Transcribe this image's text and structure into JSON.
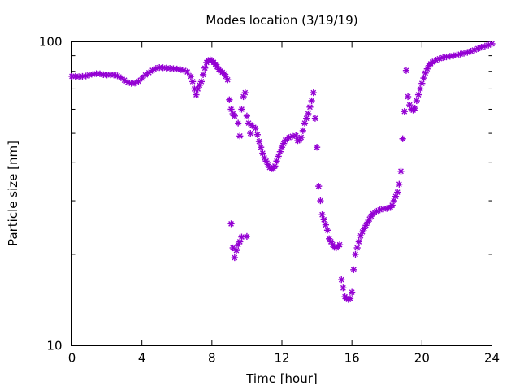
{
  "chart_data": {
    "type": "scatter",
    "title": "Modes location (3/19/19)",
    "xlabel": "Time [hour]",
    "ylabel": "Particle size [nm]",
    "xlim": [
      0,
      24
    ],
    "ylim": [
      10,
      100
    ],
    "yscale": "log",
    "grid": false,
    "marker_color": "#9400D3",
    "x_ticks": [
      "0",
      "4",
      "8",
      "12",
      "16",
      "20",
      "24"
    ],
    "y_ticks": [
      "10",
      "100"
    ],
    "series": [
      {
        "points": [
          [
            0.0,
            77
          ],
          [
            0.2,
            77
          ],
          [
            0.4,
            76.8
          ],
          [
            0.6,
            77
          ],
          [
            0.8,
            77.2
          ],
          [
            1.0,
            77.8
          ],
          [
            1.2,
            78.2
          ],
          [
            1.4,
            78.6
          ],
          [
            1.6,
            78.5
          ],
          [
            1.8,
            78
          ],
          [
            2.0,
            77.8
          ],
          [
            2.2,
            77.9
          ],
          [
            2.4,
            77.8
          ],
          [
            2.6,
            77.3
          ],
          [
            2.8,
            76.2
          ],
          [
            3.0,
            74.8
          ],
          [
            3.2,
            73.6
          ],
          [
            3.4,
            73
          ],
          [
            3.6,
            73.2
          ],
          [
            3.8,
            74.2
          ],
          [
            4.0,
            76
          ],
          [
            4.2,
            77.8
          ],
          [
            4.4,
            79.2
          ],
          [
            4.6,
            80.6
          ],
          [
            4.8,
            81.8
          ],
          [
            5.0,
            82.3
          ],
          [
            5.2,
            82.2
          ],
          [
            5.4,
            82
          ],
          [
            5.6,
            81.8
          ],
          [
            5.8,
            81.6
          ],
          [
            6.0,
            81.4
          ],
          [
            6.2,
            81
          ],
          [
            6.4,
            80.6
          ],
          [
            6.6,
            79.6
          ],
          [
            6.8,
            77
          ],
          [
            6.9,
            74
          ],
          [
            7.0,
            70
          ],
          [
            7.1,
            67
          ],
          [
            7.2,
            70
          ],
          [
            7.3,
            72
          ],
          [
            7.4,
            74
          ],
          [
            7.5,
            78
          ],
          [
            7.6,
            82
          ],
          [
            7.7,
            85.5
          ],
          [
            7.8,
            86.8
          ],
          [
            7.9,
            87.2
          ],
          [
            8.0,
            86.8
          ],
          [
            8.1,
            85.6
          ],
          [
            8.2,
            84.3
          ],
          [
            8.3,
            82.8
          ],
          [
            8.4,
            81.2
          ],
          [
            8.5,
            80.2
          ],
          [
            8.6,
            79.4
          ],
          [
            8.7,
            78.5
          ],
          [
            8.8,
            77
          ],
          [
            8.9,
            75
          ],
          [
            9.0,
            64.5
          ],
          [
            9.1,
            60
          ],
          [
            9.2,
            58
          ],
          [
            9.3,
            57
          ],
          [
            9.5,
            54
          ],
          [
            9.6,
            49
          ],
          [
            9.7,
            60
          ],
          [
            9.8,
            66
          ],
          [
            9.9,
            68
          ],
          [
            10.0,
            57
          ],
          [
            10.1,
            54
          ],
          [
            10.2,
            50
          ],
          [
            10.3,
            53
          ],
          [
            10.5,
            52
          ],
          [
            10.6,
            49.5
          ],
          [
            10.7,
            47
          ],
          [
            10.8,
            45
          ],
          [
            10.9,
            43
          ],
          [
            11.0,
            41.5
          ],
          [
            11.1,
            40.5
          ],
          [
            11.2,
            39.5
          ],
          [
            11.3,
            38.6
          ],
          [
            11.4,
            38.2
          ],
          [
            11.5,
            38.3
          ],
          [
            11.6,
            39
          ],
          [
            11.7,
            40.5
          ],
          [
            11.8,
            42
          ],
          [
            11.9,
            43.5
          ],
          [
            12.0,
            45
          ],
          [
            12.1,
            46.3
          ],
          [
            12.2,
            47.5
          ],
          [
            12.4,
            48.4
          ],
          [
            12.6,
            48.9
          ],
          [
            12.8,
            49.1
          ],
          [
            12.9,
            47.3
          ],
          [
            13.0,
            47.5
          ],
          [
            13.1,
            48.5
          ],
          [
            13.2,
            51
          ],
          [
            13.3,
            54
          ],
          [
            13.4,
            56
          ],
          [
            13.5,
            58
          ],
          [
            13.6,
            61
          ],
          [
            13.7,
            64
          ],
          [
            13.8,
            68
          ],
          [
            13.9,
            56
          ],
          [
            14.0,
            45
          ],
          [
            14.1,
            33.5
          ],
          [
            14.2,
            30
          ],
          [
            14.3,
            27
          ],
          [
            14.4,
            26
          ],
          [
            14.5,
            25
          ],
          [
            14.6,
            24
          ],
          [
            14.7,
            22.5
          ],
          [
            14.8,
            22
          ],
          [
            14.9,
            21.5
          ],
          [
            15.0,
            21.1
          ],
          [
            15.1,
            21
          ],
          [
            15.2,
            21.2
          ],
          [
            15.3,
            21.5
          ],
          [
            15.4,
            16.5
          ],
          [
            15.5,
            15.5
          ],
          [
            15.6,
            14.5
          ],
          [
            15.7,
            14.3
          ],
          [
            15.8,
            14.2
          ],
          [
            15.9,
            14.3
          ],
          [
            16.0,
            15
          ],
          [
            16.1,
            17.8
          ],
          [
            16.2,
            20
          ],
          [
            16.3,
            21
          ],
          [
            16.4,
            22
          ],
          [
            16.5,
            23
          ],
          [
            16.6,
            23.7
          ],
          [
            16.7,
            24.3
          ],
          [
            16.8,
            24.9
          ],
          [
            16.9,
            25.5
          ],
          [
            17.0,
            26.1
          ],
          [
            17.1,
            26.7
          ],
          [
            17.2,
            27.2
          ],
          [
            17.4,
            27.7
          ],
          [
            17.6,
            28
          ],
          [
            17.8,
            28.2
          ],
          [
            18.0,
            28.3
          ],
          [
            18.2,
            28.5
          ],
          [
            18.3,
            29
          ],
          [
            18.4,
            30
          ],
          [
            18.5,
            31
          ],
          [
            18.6,
            32
          ],
          [
            18.7,
            34
          ],
          [
            18.8,
            37.5
          ],
          [
            18.9,
            48
          ],
          [
            19.0,
            59
          ],
          [
            19.1,
            80.5
          ],
          [
            19.2,
            66
          ],
          [
            19.3,
            62
          ],
          [
            19.4,
            60
          ],
          [
            19.5,
            59.6
          ],
          [
            19.6,
            60.5
          ],
          [
            19.7,
            64
          ],
          [
            19.8,
            67
          ],
          [
            19.9,
            70
          ],
          [
            20.0,
            73
          ],
          [
            20.1,
            76
          ],
          [
            20.2,
            79
          ],
          [
            20.3,
            81.5
          ],
          [
            20.4,
            83.5
          ],
          [
            20.5,
            84.7
          ],
          [
            20.6,
            85.8
          ],
          [
            20.8,
            87
          ],
          [
            21.0,
            88
          ],
          [
            21.2,
            88.7
          ],
          [
            21.4,
            89.2
          ],
          [
            21.6,
            89.6
          ],
          [
            21.8,
            90
          ],
          [
            22.0,
            90.5
          ],
          [
            22.2,
            91.1
          ],
          [
            22.4,
            91.7
          ],
          [
            22.6,
            92.3
          ],
          [
            22.8,
            93.1
          ],
          [
            23.0,
            94
          ],
          [
            23.2,
            95
          ],
          [
            23.4,
            96
          ],
          [
            23.6,
            96.8
          ],
          [
            23.8,
            97.5
          ],
          [
            24.0,
            98.5
          ],
          [
            9.1,
            25.2
          ],
          [
            9.2,
            21
          ],
          [
            9.3,
            19.5
          ],
          [
            9.4,
            20.6
          ],
          [
            9.5,
            21.5
          ],
          [
            9.6,
            22
          ],
          [
            9.7,
            22.8
          ],
          [
            10.0,
            22.9
          ]
        ]
      }
    ]
  }
}
